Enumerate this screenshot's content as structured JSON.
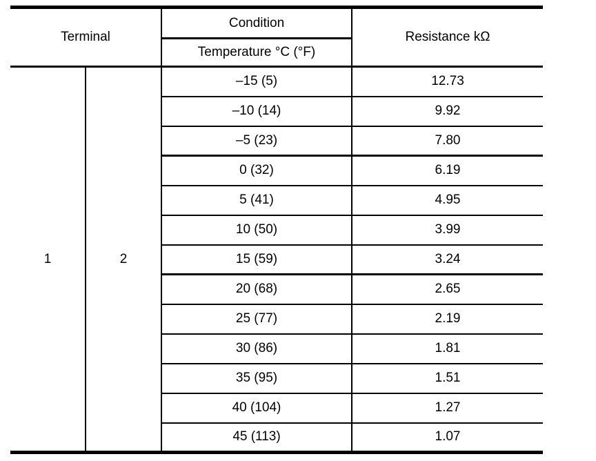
{
  "table": {
    "header": {
      "terminal": "Terminal",
      "condition": "Condition",
      "temperature": "Temperature °C (°F)",
      "resistance": "Resistance kΩ"
    },
    "terminal_values": {
      "left": "1",
      "right": "2"
    },
    "rows": [
      {
        "temp": "–15 (5)",
        "resistance": "12.73"
      },
      {
        "temp": "–10 (14)",
        "resistance": "9.92"
      },
      {
        "temp": "–5 (23)",
        "resistance": "7.80"
      },
      {
        "temp": "0 (32)",
        "resistance": "6.19"
      },
      {
        "temp": "5 (41)",
        "resistance": "4.95"
      },
      {
        "temp": "10 (50)",
        "resistance": "3.99"
      },
      {
        "temp": "15 (59)",
        "resistance": "3.24"
      },
      {
        "temp": "20 (68)",
        "resistance": "2.65"
      },
      {
        "temp": "25 (77)",
        "resistance": "2.19"
      },
      {
        "temp": "30 (86)",
        "resistance": "1.81"
      },
      {
        "temp": "35 (95)",
        "resistance": "1.51"
      },
      {
        "temp": "40 (104)",
        "resistance": "1.27"
      },
      {
        "temp": "45 (113)",
        "resistance": "1.07"
      }
    ]
  },
  "colors": {
    "line": "#000000",
    "text": "#000000",
    "background": "#ffffff"
  }
}
